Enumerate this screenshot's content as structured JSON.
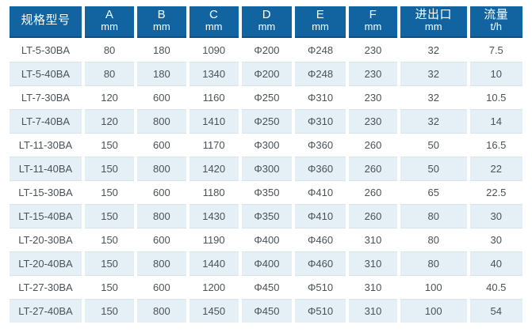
{
  "colors": {
    "header_bg": "#1164a0",
    "header_edge": "#0b4f85",
    "header_text": "#ffffff",
    "row_alt_bg": "#e5eff6",
    "row_divider": "#d9e3ea",
    "cell_text": "#4b5257"
  },
  "table": {
    "headers": [
      {
        "label": "规格型号",
        "unit": ""
      },
      {
        "label": "A",
        "unit": "mm"
      },
      {
        "label": "B",
        "unit": "mm"
      },
      {
        "label": "C",
        "unit": "mm"
      },
      {
        "label": "D",
        "unit": "mm"
      },
      {
        "label": "E",
        "unit": "mm"
      },
      {
        "label": "F",
        "unit": "mm"
      },
      {
        "label": "进出口",
        "unit": "mm"
      },
      {
        "label": "流量",
        "unit": "t/h"
      }
    ],
    "rows": [
      [
        "LT-5-30BA",
        "80",
        "180",
        "1090",
        "Φ200",
        "Φ248",
        "230",
        "32",
        "7.5"
      ],
      [
        "LT-5-40BA",
        "80",
        "180",
        "1340",
        "Φ200",
        "Φ248",
        "230",
        "32",
        "10"
      ],
      [
        "LT-7-30BA",
        "120",
        "600",
        "1160",
        "Φ250",
        "Φ310",
        "230",
        "32",
        "10.5"
      ],
      [
        "LT-7-40BA",
        "120",
        "800",
        "1410",
        "Φ250",
        "Φ310",
        "230",
        "32",
        "14"
      ],
      [
        "LT-11-30BA",
        "150",
        "600",
        "1170",
        "Φ300",
        "Φ360",
        "260",
        "50",
        "16.5"
      ],
      [
        "LT-11-40BA",
        "150",
        "800",
        "1420",
        "Φ300",
        "Φ360",
        "260",
        "50",
        "22"
      ],
      [
        "LT-15-30BA",
        "150",
        "600",
        "1180",
        "Φ350",
        "Φ410",
        "260",
        "65",
        "22.5"
      ],
      [
        "LT-15-40BA",
        "150",
        "800",
        "1430",
        "Φ350",
        "Φ410",
        "260",
        "80",
        "30"
      ],
      [
        "LT-20-30BA",
        "150",
        "600",
        "1190",
        "Φ400",
        "Φ460",
        "310",
        "80",
        "30"
      ],
      [
        "LT-20-40BA",
        "150",
        "800",
        "1440",
        "Φ400",
        "Φ460",
        "310",
        "80",
        "40"
      ],
      [
        "LT-27-30BA",
        "150",
        "600",
        "1200",
        "Φ450",
        "Φ510",
        "310",
        "100",
        "40.5"
      ],
      [
        "LT-27-40BA",
        "150",
        "800",
        "1450",
        "Φ450",
        "Φ510",
        "310",
        "100",
        "54"
      ]
    ]
  },
  "chart_data": {
    "type": "table",
    "title": "",
    "columns": [
      "规格型号",
      "A mm",
      "B mm",
      "C mm",
      "D mm",
      "E mm",
      "F mm",
      "进出口 mm",
      "流量 t/h"
    ],
    "rows": [
      [
        "LT-5-30BA",
        80,
        180,
        1090,
        "Φ200",
        "Φ248",
        230,
        32,
        7.5
      ],
      [
        "LT-5-40BA",
        80,
        180,
        1340,
        "Φ200",
        "Φ248",
        230,
        32,
        10
      ],
      [
        "LT-7-30BA",
        120,
        600,
        1160,
        "Φ250",
        "Φ310",
        230,
        32,
        10.5
      ],
      [
        "LT-7-40BA",
        120,
        800,
        1410,
        "Φ250",
        "Φ310",
        230,
        32,
        14
      ],
      [
        "LT-11-30BA",
        150,
        600,
        1170,
        "Φ300",
        "Φ360",
        260,
        50,
        16.5
      ],
      [
        "LT-11-40BA",
        150,
        800,
        1420,
        "Φ300",
        "Φ360",
        260,
        50,
        22
      ],
      [
        "LT-15-30BA",
        150,
        600,
        1180,
        "Φ350",
        "Φ410",
        260,
        65,
        22.5
      ],
      [
        "LT-15-40BA",
        150,
        800,
        1430,
        "Φ350",
        "Φ410",
        260,
        80,
        30
      ],
      [
        "LT-20-30BA",
        150,
        600,
        1190,
        "Φ400",
        "Φ460",
        310,
        80,
        30
      ],
      [
        "LT-20-40BA",
        150,
        800,
        1440,
        "Φ400",
        "Φ460",
        310,
        80,
        40
      ],
      [
        "LT-27-30BA",
        150,
        600,
        1200,
        "Φ450",
        "Φ510",
        310,
        100,
        40.5
      ],
      [
        "LT-27-40BA",
        150,
        800,
        1450,
        "Φ450",
        "Φ510",
        310,
        100,
        54
      ]
    ]
  }
}
